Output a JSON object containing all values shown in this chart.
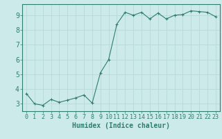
{
  "title": "",
  "xlabel": "Humidex (Indice chaleur)",
  "ylabel": "",
  "x": [
    0,
    1,
    2,
    3,
    4,
    5,
    6,
    7,
    8,
    9,
    10,
    11,
    12,
    13,
    14,
    15,
    16,
    17,
    18,
    19,
    20,
    21,
    22,
    23
  ],
  "y": [
    3.7,
    3.0,
    2.9,
    3.3,
    3.1,
    3.25,
    3.4,
    3.6,
    3.05,
    5.1,
    6.0,
    8.4,
    9.2,
    9.0,
    9.2,
    8.75,
    9.15,
    8.75,
    9.0,
    9.05,
    9.3,
    9.25,
    9.2,
    8.9
  ],
  "line_color": "#2e7d6e",
  "bg_color": "#cdeaea",
  "grid_color": "#b8d8d8",
  "font_color": "#2e7d6e",
  "ylim": [
    2.5,
    9.75
  ],
  "yticks": [
    3,
    4,
    5,
    6,
    7,
    8,
    9
  ],
  "xlabel_fontsize": 7,
  "tick_fontsize": 6,
  "marker": "+"
}
